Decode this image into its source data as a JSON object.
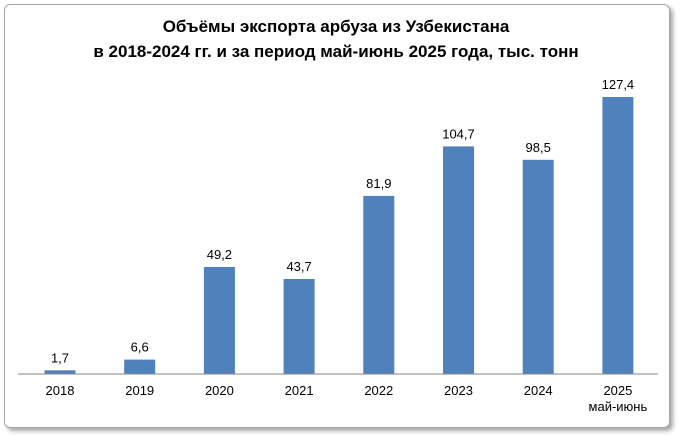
{
  "chart_data": {
    "type": "bar",
    "title_line1": "Объёмы экспорта арбуза из Узбекистана",
    "title_line2": "в 2018-2024 гг. и за период май-июнь 2025 года, тыс. тонн",
    "categories": [
      "2018",
      "2019",
      "2020",
      "2021",
      "2022",
      "2023",
      "2024",
      "2025"
    ],
    "category_sublabels": [
      "",
      "",
      "",
      "",
      "",
      "",
      "",
      "май-июнь"
    ],
    "values": [
      1.7,
      6.6,
      49.2,
      43.7,
      81.9,
      104.7,
      98.5,
      127.4
    ],
    "value_labels": [
      "1,7",
      "6,6",
      "49,2",
      "43,7",
      "81,9",
      "104,7",
      "98,5",
      "127,4"
    ],
    "ylim": [
      0,
      127.4
    ],
    "grid": false,
    "legend": "none",
    "bar_color": "#4f81bd"
  }
}
